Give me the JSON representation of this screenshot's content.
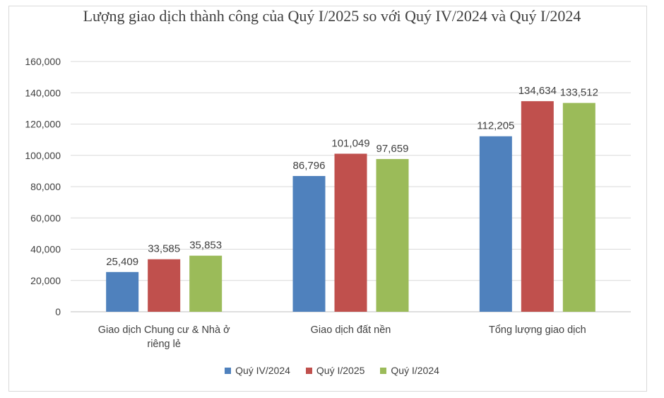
{
  "chart_data": {
    "type": "bar",
    "title": "Lượng giao dịch thành công của Quý I/2025 so với Quý IV/2024 và Quý I/2024",
    "categories": [
      [
        "Giao dịch Chung cư & Nhà ở",
        "riêng lẻ"
      ],
      [
        "Giao dịch đất nền"
      ],
      [
        "Tổng lượng giao dịch"
      ]
    ],
    "series": [
      {
        "name": "Quý IV/2024",
        "color": "#4f81bd",
        "values": [
          25409,
          86796,
          112205
        ],
        "labels": [
          "25,409",
          "86,796",
          "112,205"
        ]
      },
      {
        "name": "Quý I/2025",
        "color": "#c0504d",
        "values": [
          33585,
          101049,
          134634
        ],
        "labels": [
          "33,585",
          "101,049",
          "134,634"
        ]
      },
      {
        "name": "Quý I/2024",
        "color": "#9bbb59",
        "values": [
          35853,
          97659,
          133512
        ],
        "labels": [
          "35,853",
          "97,659",
          "133,512"
        ]
      }
    ],
    "ylim": [
      0,
      160000
    ],
    "yticks": [
      0,
      20000,
      40000,
      60000,
      80000,
      100000,
      120000,
      140000,
      160000
    ],
    "ytick_labels": [
      "0",
      "20,000",
      "40,000",
      "60,000",
      "80,000",
      "100,000",
      "120,000",
      "140,000",
      "160,000"
    ],
    "grid": true,
    "legend_position": "bottom"
  }
}
